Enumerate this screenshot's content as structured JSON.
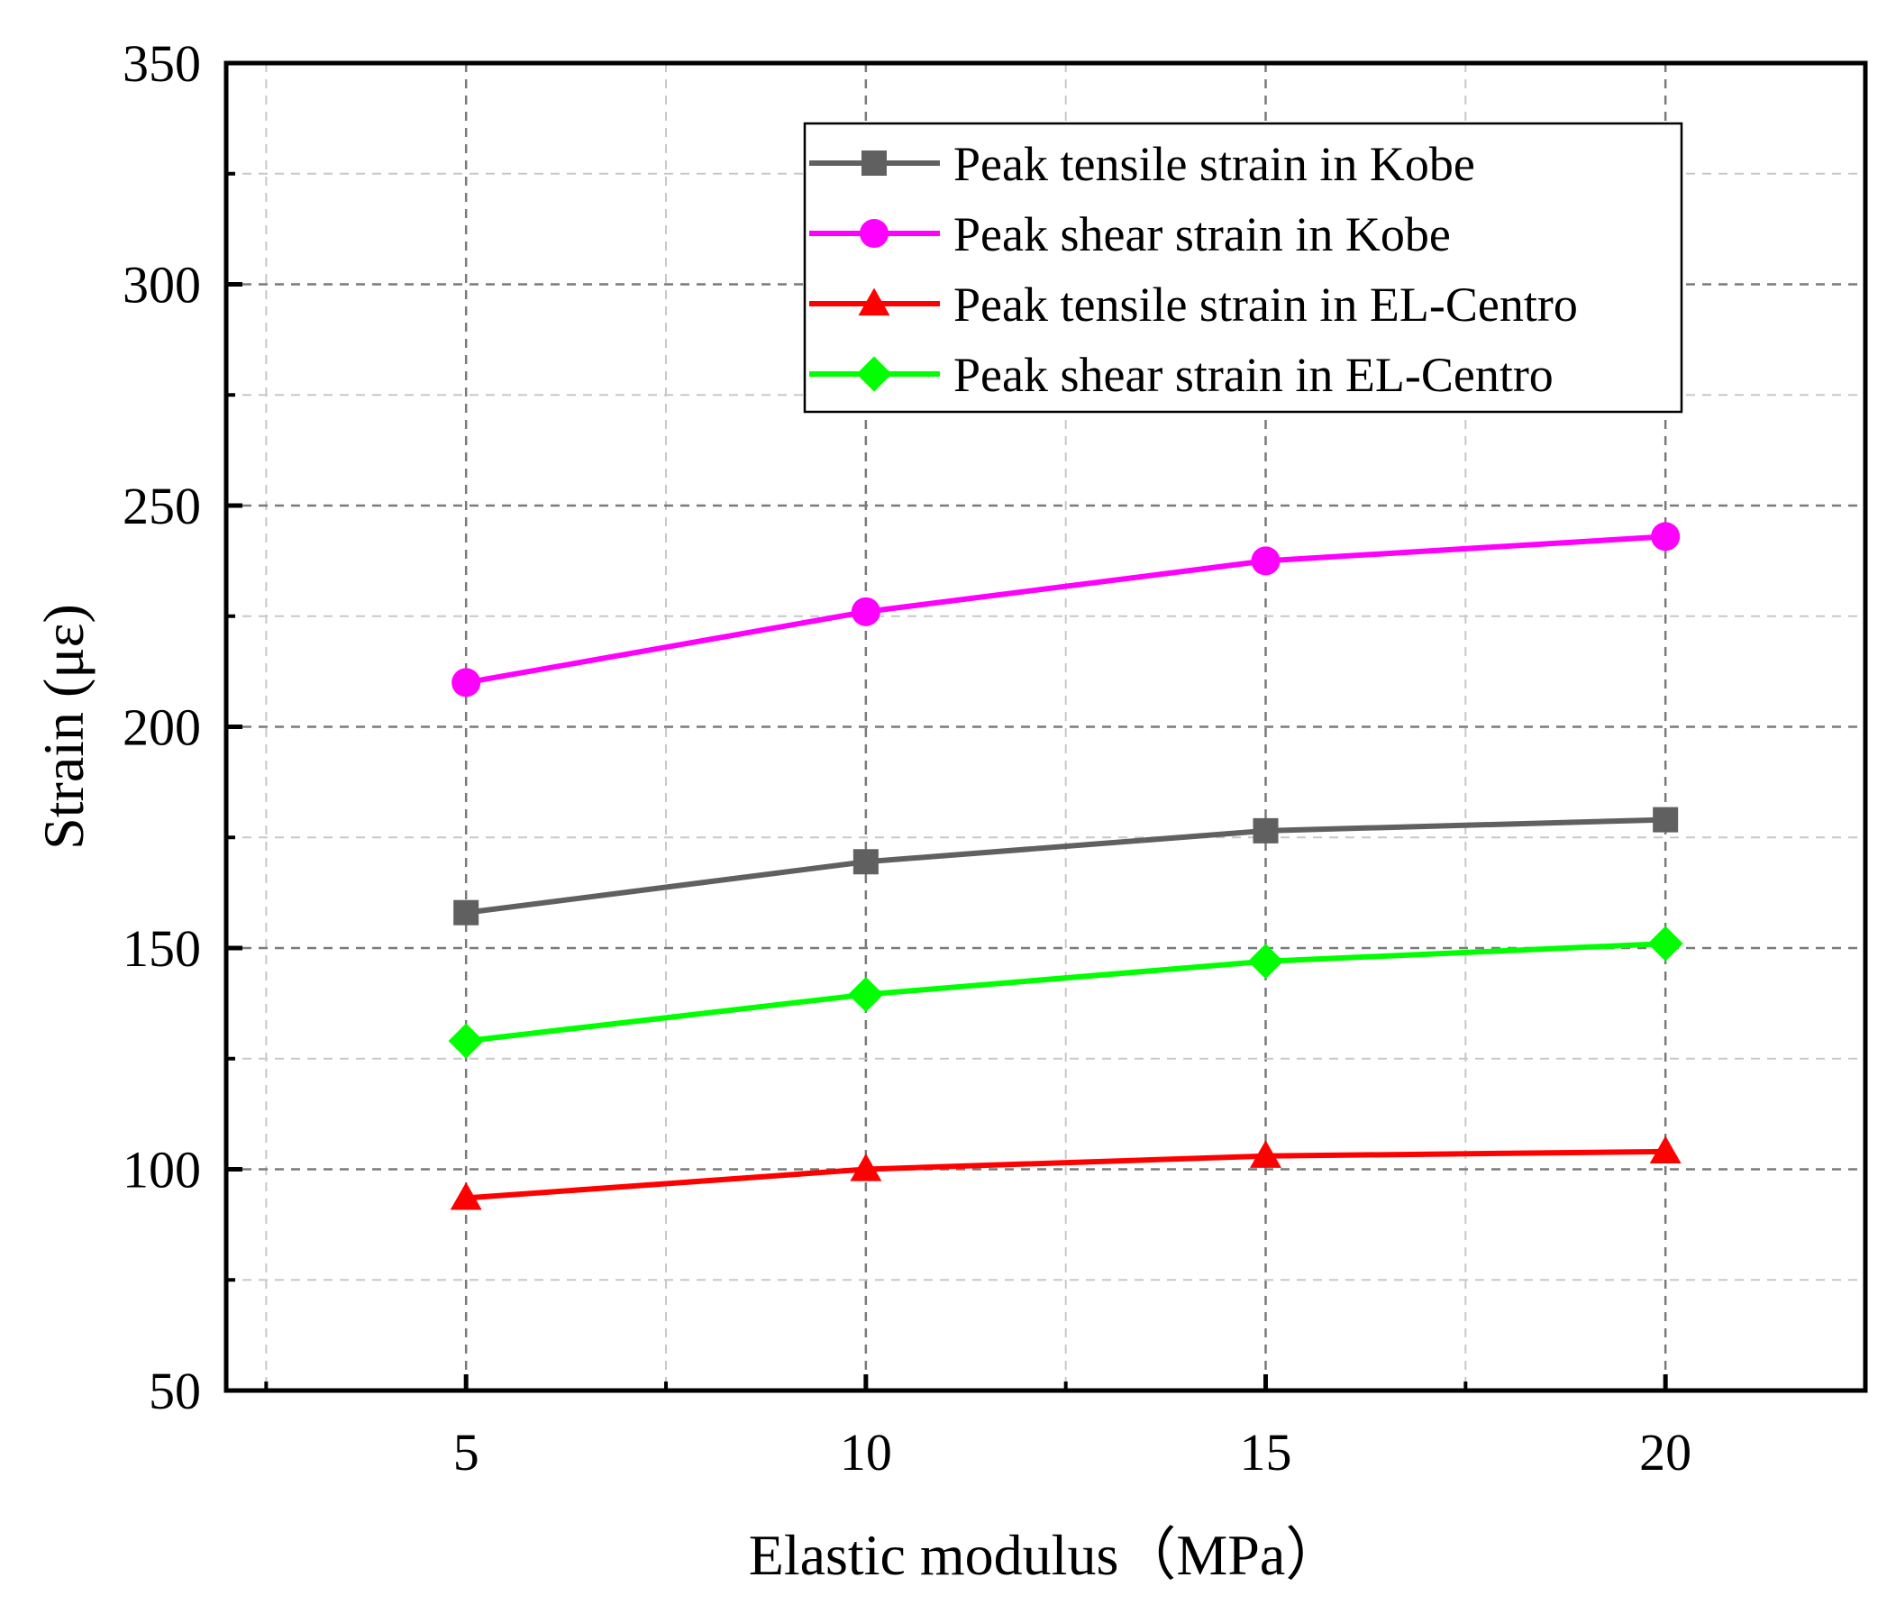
{
  "chart_data": {
    "type": "line",
    "title": "",
    "xlabel": "Elastic modulus（MPa）",
    "ylabel": "Strain (με)",
    "xlim": [
      2,
      22.5
    ],
    "ylim": [
      50,
      350
    ],
    "x": [
      5,
      10,
      15,
      20
    ],
    "x_ticks": [
      "5",
      "10",
      "15",
      "20"
    ],
    "y_ticks": [
      "50",
      "100",
      "150",
      "200",
      "250",
      "300",
      "350"
    ],
    "grid": true,
    "legend_position": "top-right",
    "series": [
      {
        "name": "Peak tensile strain in Kobe",
        "marker": "square",
        "color": "#606060",
        "values": [
          158,
          169.5,
          176.5,
          179
        ]
      },
      {
        "name": "Peak shear strain in Kobe",
        "marker": "circle",
        "color": "#ff00ff",
        "values": [
          210,
          226,
          237.5,
          243
        ]
      },
      {
        "name": "Peak tensile strain in EL-Centro",
        "marker": "triangle",
        "color": "#ff0000",
        "values": [
          93.5,
          100,
          103,
          104
        ]
      },
      {
        "name": "Peak shear strain in EL-Centro",
        "marker": "diamond",
        "color": "#00ff00",
        "values": [
          129,
          139.5,
          147,
          151
        ]
      }
    ]
  }
}
